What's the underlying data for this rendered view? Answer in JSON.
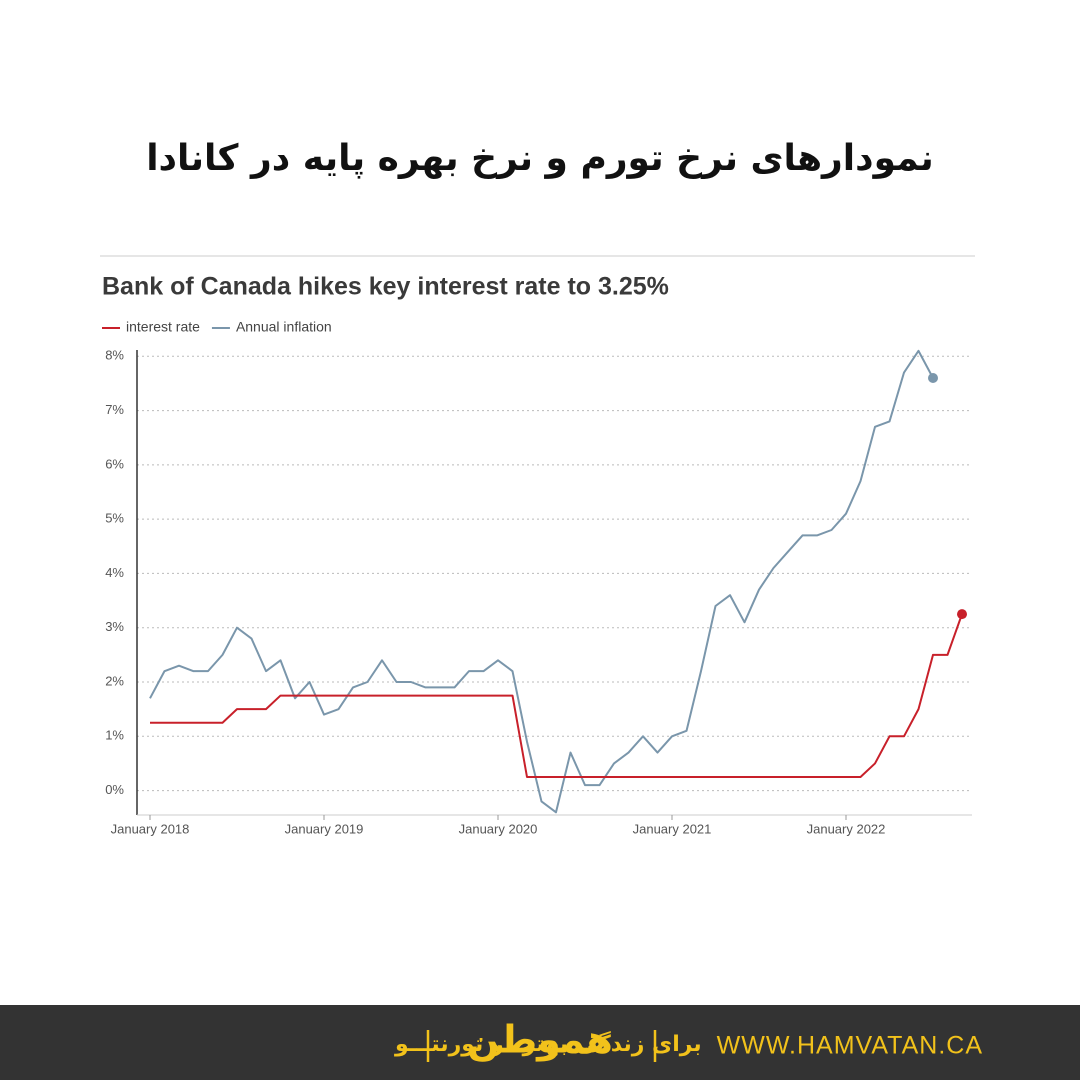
{
  "header": {
    "title": "نمودارهای نرخ تورم و نرخ بهره پایه در کانادا"
  },
  "chart_data": {
    "type": "line",
    "title": "Bank of Canada hikes key interest rate to 3.25%",
    "categories": [
      "2018-01",
      "2018-02",
      "2018-03",
      "2018-04",
      "2018-05",
      "2018-06",
      "2018-07",
      "2018-08",
      "2018-09",
      "2018-10",
      "2018-11",
      "2018-12",
      "2019-01",
      "2019-02",
      "2019-03",
      "2019-04",
      "2019-05",
      "2019-06",
      "2019-07",
      "2019-08",
      "2019-09",
      "2019-10",
      "2019-11",
      "2019-12",
      "2020-01",
      "2020-02",
      "2020-03",
      "2020-04",
      "2020-05",
      "2020-06",
      "2020-07",
      "2020-08",
      "2020-09",
      "2020-10",
      "2020-11",
      "2020-12",
      "2021-01",
      "2021-02",
      "2021-03",
      "2021-04",
      "2021-05",
      "2021-06",
      "2021-07",
      "2021-08",
      "2021-09",
      "2021-10",
      "2021-11",
      "2021-12",
      "2022-01",
      "2022-02",
      "2022-03",
      "2022-04",
      "2022-05",
      "2022-06",
      "2022-07",
      "2022-08",
      "2022-09"
    ],
    "series": [
      {
        "name": "interest rate",
        "color": "#c8202a",
        "values": [
          1.25,
          1.25,
          1.25,
          1.25,
          1.25,
          1.25,
          1.5,
          1.5,
          1.5,
          1.75,
          1.75,
          1.75,
          1.75,
          1.75,
          1.75,
          1.75,
          1.75,
          1.75,
          1.75,
          1.75,
          1.75,
          1.75,
          1.75,
          1.75,
          1.75,
          1.75,
          0.25,
          0.25,
          0.25,
          0.25,
          0.25,
          0.25,
          0.25,
          0.25,
          0.25,
          0.25,
          0.25,
          0.25,
          0.25,
          0.25,
          0.25,
          0.25,
          0.25,
          0.25,
          0.25,
          0.25,
          0.25,
          0.25,
          0.25,
          0.25,
          0.5,
          1.0,
          1.0,
          1.5,
          2.5,
          2.5,
          3.25
        ]
      },
      {
        "name": "Annual inflation",
        "color": "#7a96ab",
        "values": [
          1.7,
          2.2,
          2.3,
          2.2,
          2.2,
          2.5,
          3.0,
          2.8,
          2.2,
          2.4,
          1.7,
          2.0,
          1.4,
          1.5,
          1.9,
          2.0,
          2.4,
          2.0,
          2.0,
          1.9,
          1.9,
          1.9,
          2.2,
          2.2,
          2.4,
          2.2,
          0.9,
          -0.2,
          -0.4,
          0.7,
          0.1,
          0.1,
          0.5,
          0.7,
          1.0,
          0.7,
          1.0,
          1.1,
          2.2,
          3.4,
          3.6,
          3.1,
          3.7,
          4.1,
          4.4,
          4.7,
          4.7,
          4.8,
          5.1,
          5.7,
          6.7,
          6.8,
          7.7,
          8.1,
          7.6,
          null,
          null
        ]
      }
    ],
    "ylim": [
      -0.45,
      8.3
    ],
    "yticks": [
      {
        "value": 0,
        "label": "0%"
      },
      {
        "value": 1,
        "label": "1%"
      },
      {
        "value": 2,
        "label": "2%"
      },
      {
        "value": 3,
        "label": "3%"
      },
      {
        "value": 4,
        "label": "4%"
      },
      {
        "value": 5,
        "label": "5%"
      },
      {
        "value": 6,
        "label": "6%"
      },
      {
        "value": 7,
        "label": "7%"
      },
      {
        "value": 8,
        "label": "8%"
      }
    ],
    "xticks": [
      {
        "value": "2018-01",
        "label": "January 2018"
      },
      {
        "value": "2019-01",
        "label": "January 2019"
      },
      {
        "value": "2020-01",
        "label": "January 2020"
      },
      {
        "value": "2021-01",
        "label": "January 2021"
      },
      {
        "value": "2022-01",
        "label": "January 2022"
      }
    ],
    "grid": true
  },
  "footer": {
    "slogan": "برای زندگی بهتر در تورنتـــو",
    "logo": "هموطن",
    "url": "WWW.HAMVATAN.CA"
  }
}
